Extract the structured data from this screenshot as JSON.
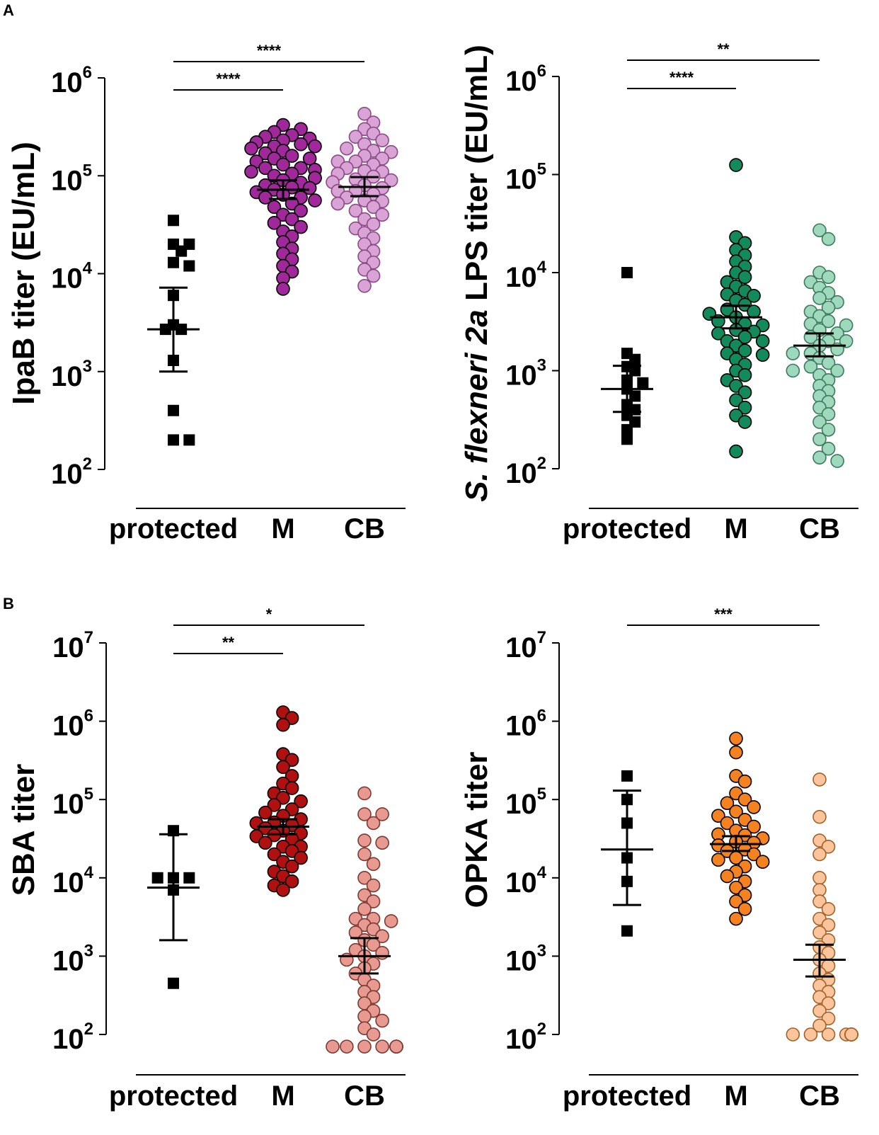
{
  "figure": {
    "panel_labels": [
      "A",
      "B"
    ]
  },
  "chart_data": [
    {
      "type": "scatter",
      "id": "ipab",
      "panel": "A",
      "title": "",
      "ylabel": "IpaB titer (EU/mL)",
      "ylabel_parts": [
        {
          "text": "IpaB titer (EU/mL)",
          "italic": false
        }
      ],
      "yscale": "log",
      "ylim": [
        100,
        1000000
      ],
      "yticks": [
        100,
        1000,
        10000,
        100000,
        1000000
      ],
      "ytick_labels": [
        {
          "base": "10",
          "exp": "2"
        },
        {
          "base": "10",
          "exp": "3"
        },
        {
          "base": "10",
          "exp": "4"
        },
        {
          "base": "10",
          "exp": "5"
        },
        {
          "base": "10",
          "exp": "6"
        }
      ],
      "categories": [
        "protected",
        "M",
        "CB"
      ],
      "groups": [
        {
          "name": "protected",
          "marker": "square",
          "color": "#000000",
          "stroke": "#000000",
          "values": [
            35000,
            17000,
            20000,
            20000,
            13000,
            12000,
            6000,
            3000,
            2700,
            2700,
            1300,
            400,
            200,
            200
          ],
          "mean": 2700,
          "ci": [
            1000,
            7200
          ]
        },
        {
          "name": "M",
          "marker": "circle",
          "color": "#a0289a",
          "stroke": "#000000",
          "values": [
            330000,
            300000,
            280000,
            260000,
            250000,
            240000,
            230000,
            220000,
            210000,
            200000,
            190000,
            180000,
            170000,
            160000,
            150000,
            140000,
            130000,
            120000,
            115000,
            110000,
            105000,
            100000,
            95000,
            90000,
            85000,
            80000,
            76000,
            72000,
            68000,
            64000,
            60000,
            56000,
            52000,
            48000,
            44000,
            40000,
            36000,
            33000,
            30000,
            27000,
            24000,
            21000,
            18000,
            16000,
            14000,
            12000,
            10500,
            9000,
            7000,
            200000,
            150000,
            120000,
            95000,
            75000,
            60000
          ],
          "mean": 72000,
          "ci": [
            58000,
            90000
          ]
        },
        {
          "name": "CB",
          "marker": "circle",
          "color": "#d9a3d6",
          "stroke": "#8a4a86",
          "values": [
            430000,
            350000,
            300000,
            270000,
            250000,
            230000,
            210000,
            190000,
            175000,
            160000,
            150000,
            140000,
            130000,
            120000,
            112000,
            105000,
            98000,
            92000,
            86000,
            80000,
            75000,
            70000,
            65000,
            60000,
            56000,
            52000,
            48000,
            44000,
            40000,
            36000,
            32000,
            29000,
            26000,
            23000,
            20000,
            17000,
            15000,
            13000,
            11000,
            9500,
            7500,
            180000,
            140000,
            110000,
            90000,
            70000,
            55000
          ],
          "mean": 77000,
          "ci": [
            62000,
            97000
          ]
        }
      ],
      "comparisons": [
        {
          "from": "protected",
          "to": "M",
          "label": "****"
        },
        {
          "from": "protected",
          "to": "CB",
          "label": "****"
        }
      ]
    },
    {
      "type": "scatter",
      "id": "lps",
      "panel": "A",
      "title": "",
      "ylabel": "S. flexneri 2a LPS titer (EU/mL)",
      "ylabel_parts": [
        {
          "text": "S. flexneri 2a",
          "italic": true
        },
        {
          "text": " LPS titer (EU/mL)",
          "italic": false
        }
      ],
      "yscale": "log",
      "ylim": [
        100,
        1000000
      ],
      "yticks": [
        100,
        1000,
        10000,
        100000,
        1000000
      ],
      "ytick_labels": [
        {
          "base": "10",
          "exp": "2"
        },
        {
          "base": "10",
          "exp": "3"
        },
        {
          "base": "10",
          "exp": "4"
        },
        {
          "base": "10",
          "exp": "5"
        },
        {
          "base": "10",
          "exp": "6"
        }
      ],
      "categories": [
        "protected",
        "M",
        "CB"
      ],
      "groups": [
        {
          "name": "protected",
          "marker": "square",
          "color": "#000000",
          "stroke": "#000000",
          "values": [
            10000,
            1500,
            1300,
            1100,
            1000,
            800,
            750,
            650,
            550,
            450,
            400,
            350,
            300,
            250,
            200
          ],
          "mean": 650,
          "ci": [
            380,
            1120
          ]
        },
        {
          "name": "M",
          "marker": "circle",
          "color": "#138a5c",
          "stroke": "#000000",
          "values": [
            125000,
            23000,
            20000,
            17000,
            15000,
            13000,
            11500,
            10000,
            9000,
            8000,
            7200,
            6500,
            5800,
            5200,
            4700,
            4200,
            3800,
            3500,
            3200,
            2900,
            2600,
            2400,
            2200,
            2000,
            1800,
            1600,
            1450,
            1300,
            1150,
            1000,
            900,
            800,
            700,
            600,
            500,
            420,
            350,
            300,
            150,
            6000,
            4000,
            3000,
            2500,
            2000,
            1500
          ],
          "mean": 3500,
          "ci": [
            2700,
            4600
          ]
        },
        {
          "name": "CB",
          "marker": "circle",
          "color": "#9fd9bd",
          "stroke": "#3c7a5c",
          "values": [
            27000,
            22000,
            10000,
            9000,
            8000,
            7000,
            6200,
            5500,
            5000,
            4400,
            4000,
            3600,
            3200,
            2900,
            2600,
            2400,
            2200,
            2000,
            1800,
            1650,
            1500,
            1350,
            1200,
            1100,
            1000,
            900,
            800,
            700,
            620,
            550,
            480,
            420,
            360,
            300,
            250,
            200,
            160,
            130,
            120,
            3000,
            2000,
            1500,
            1000
          ],
          "mean": 1800,
          "ci": [
            1400,
            2400
          ]
        }
      ],
      "comparisons": [
        {
          "from": "protected",
          "to": "M",
          "label": "****"
        },
        {
          "from": "protected",
          "to": "CB",
          "label": "**"
        }
      ]
    },
    {
      "type": "scatter",
      "id": "sba",
      "panel": "B",
      "title": "",
      "ylabel": "SBA titer",
      "ylabel_parts": [
        {
          "text": "SBA titer",
          "italic": false
        }
      ],
      "yscale": "log",
      "ylim": [
        100,
        10000000
      ],
      "yticks": [
        100,
        1000,
        10000,
        100000,
        1000000,
        10000000
      ],
      "ytick_labels": [
        {
          "base": "10",
          "exp": "2"
        },
        {
          "base": "10",
          "exp": "3"
        },
        {
          "base": "10",
          "exp": "4"
        },
        {
          "base": "10",
          "exp": "5"
        },
        {
          "base": "10",
          "exp": "6"
        },
        {
          "base": "10",
          "exp": "7"
        }
      ],
      "categories": [
        "protected",
        "M",
        "CB"
      ],
      "groups": [
        {
          "name": "protected",
          "marker": "square",
          "color": "#000000",
          "stroke": "#000000",
          "values": [
            40000,
            10000,
            10000,
            10000,
            7000,
            450
          ],
          "mean": 7500,
          "ci": [
            1600,
            36000
          ]
        },
        {
          "name": "M",
          "marker": "circle",
          "color": "#b01010",
          "stroke": "#000000",
          "values": [
            1300000,
            1100000,
            900000,
            380000,
            320000,
            260000,
            200000,
            160000,
            140000,
            120000,
            105000,
            95000,
            85000,
            75000,
            68000,
            62000,
            56000,
            51000,
            47000,
            43000,
            40000,
            37000,
            34000,
            31000,
            28000,
            25000,
            22000,
            20000,
            18000,
            16000,
            14000,
            12000,
            10500,
            9000,
            8000,
            7000,
            50000,
            35000,
            25000
          ],
          "mean": 45000,
          "ci": [
            36000,
            56000
          ]
        },
        {
          "name": "CB",
          "marker": "circle",
          "color": "#e89a90",
          "stroke": "#7a3a34",
          "values": [
            120000,
            65000,
            65000,
            50000,
            30000,
            28000,
            20000,
            15000,
            10000,
            8000,
            6000,
            5000,
            4000,
            3000,
            3000,
            2800,
            2500,
            2200,
            2000,
            1800,
            1600,
            1400,
            1200,
            1100,
            1000,
            900,
            800,
            700,
            600,
            500,
            420,
            350,
            300,
            250,
            200,
            170,
            150,
            120,
            100,
            70,
            70,
            70,
            70,
            70,
            70,
            70,
            70,
            70,
            70
          ],
          "mean": 1000,
          "ci": [
            600,
            1700
          ]
        }
      ],
      "comparisons": [
        {
          "from": "protected",
          "to": "M",
          "label": "**"
        },
        {
          "from": "protected",
          "to": "CB",
          "label": "*"
        }
      ]
    },
    {
      "type": "scatter",
      "id": "opka",
      "panel": "B",
      "title": "",
      "ylabel": "OPKA titer",
      "ylabel_parts": [
        {
          "text": "OPKA titer",
          "italic": false
        }
      ],
      "yscale": "log",
      "ylim": [
        100,
        10000000
      ],
      "yticks": [
        100,
        1000,
        10000,
        100000,
        1000000,
        10000000
      ],
      "ytick_labels": [
        {
          "base": "10",
          "exp": "2"
        },
        {
          "base": "10",
          "exp": "3"
        },
        {
          "base": "10",
          "exp": "4"
        },
        {
          "base": "10",
          "exp": "5"
        },
        {
          "base": "10",
          "exp": "6"
        },
        {
          "base": "10",
          "exp": "7"
        }
      ],
      "categories": [
        "protected",
        "M",
        "CB"
      ],
      "groups": [
        {
          "name": "protected",
          "marker": "square",
          "color": "#000000",
          "stroke": "#000000",
          "values": [
            200000,
            100000,
            50000,
            18000,
            9000,
            2100
          ],
          "mean": 23000,
          "ci": [
            4500,
            130000
          ]
        },
        {
          "name": "M",
          "marker": "circle",
          "color": "#f58220",
          "stroke": "#000000",
          "values": [
            600000,
            400000,
            200000,
            170000,
            120000,
            100000,
            90000,
            80000,
            70000,
            62000,
            55000,
            50000,
            45000,
            40000,
            36000,
            32000,
            29000,
            26000,
            23000,
            20000,
            18000,
            16000,
            14000,
            12000,
            10500,
            9000,
            7500,
            6000,
            5000,
            4000,
            3000,
            35000,
            28000,
            22000,
            17000
          ],
          "mean": 27000,
          "ci": [
            22000,
            34000
          ]
        },
        {
          "name": "CB",
          "marker": "circle",
          "color": "#fbc49a",
          "stroke": "#a0622a",
          "values": [
            180000,
            60000,
            30000,
            25000,
            20000,
            10000,
            7000,
            5000,
            4000,
            3000,
            2500,
            2000,
            1600,
            1300,
            1100,
            900,
            750,
            600,
            500,
            420,
            350,
            300,
            250,
            200,
            160,
            130,
            100,
            100,
            100,
            100,
            100,
            100,
            100,
            100,
            100,
            100,
            100,
            100,
            100,
            100
          ],
          "mean": 900,
          "ci": [
            550,
            1400
          ]
        }
      ],
      "comparisons": [
        {
          "from": "protected",
          "to": "CB",
          "label": "***"
        }
      ]
    }
  ]
}
